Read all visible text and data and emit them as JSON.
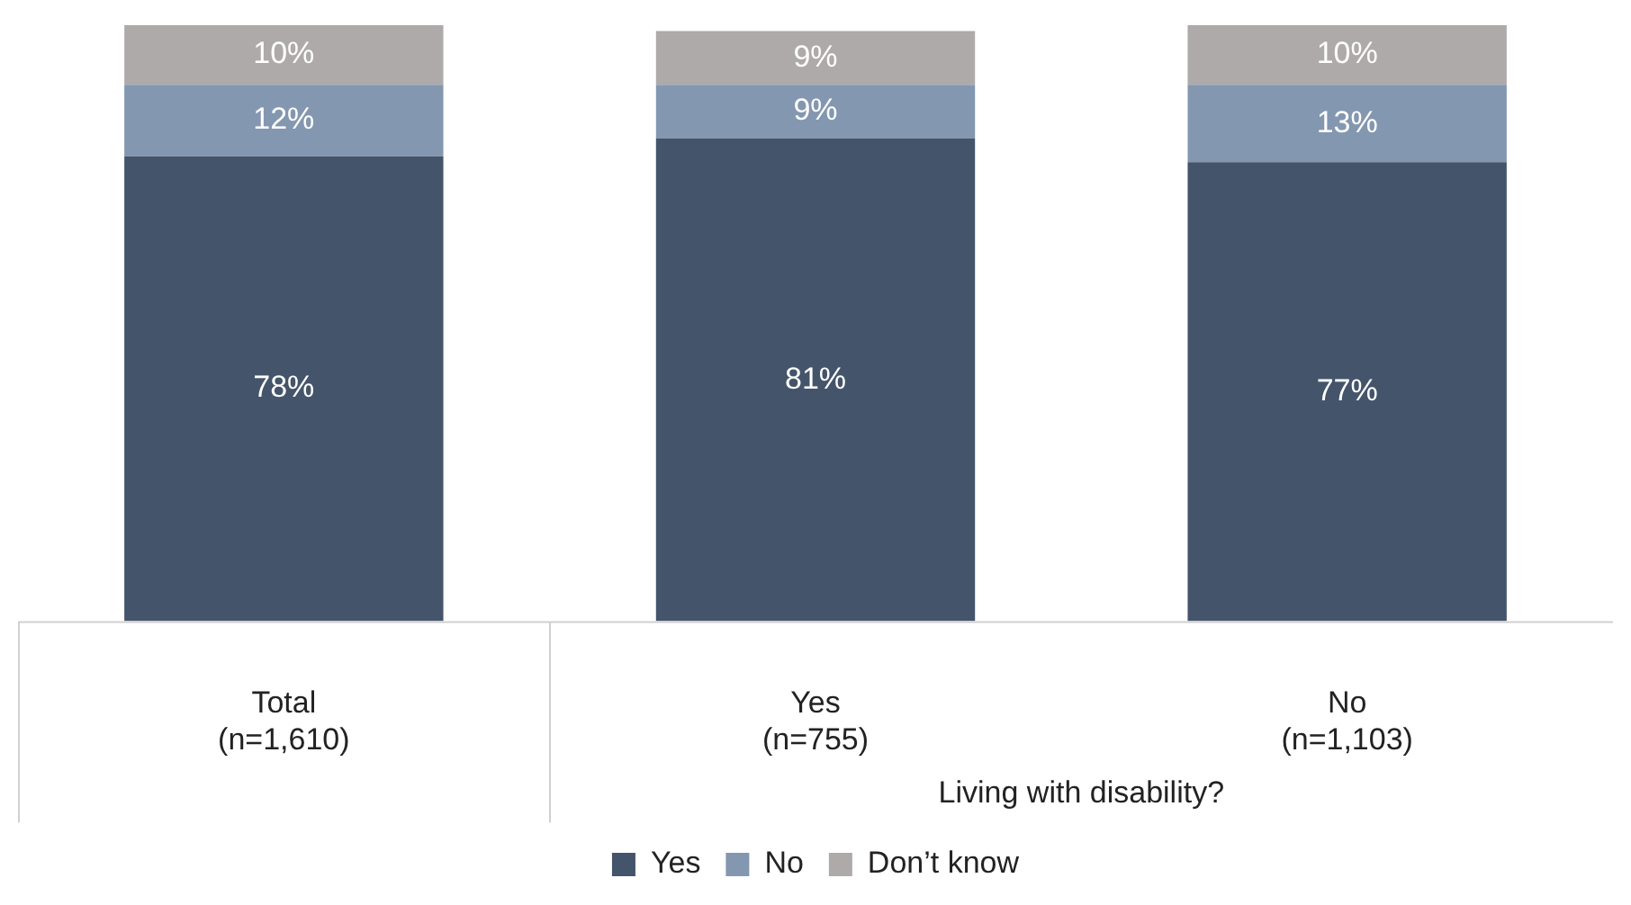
{
  "chart_data": {
    "type": "bar",
    "stacked": true,
    "categories": [
      "Total\n(n=1,610)",
      "Yes\n(n=755)",
      "No\n(n=1,103)"
    ],
    "series": [
      {
        "name": "Yes",
        "color": "#44546a",
        "values": [
          78,
          81,
          77
        ],
        "value_labels": [
          "78%",
          "81%",
          "77%"
        ]
      },
      {
        "name": "No",
        "color": "#8497b0",
        "values": [
          12,
          9,
          13
        ],
        "value_labels": [
          "12%",
          "9%",
          "13%"
        ]
      },
      {
        "name": "Don’t know",
        "color": "#aeaaaa",
        "values": [
          10,
          9,
          10
        ],
        "value_labels": [
          "10%",
          "9%",
          "10%"
        ]
      }
    ],
    "ylim": [
      0,
      100
    ],
    "tick_labels": "x",
    "grid": false,
    "legend": "bottom",
    "annotations": [
      "Living with disability?"
    ]
  }
}
